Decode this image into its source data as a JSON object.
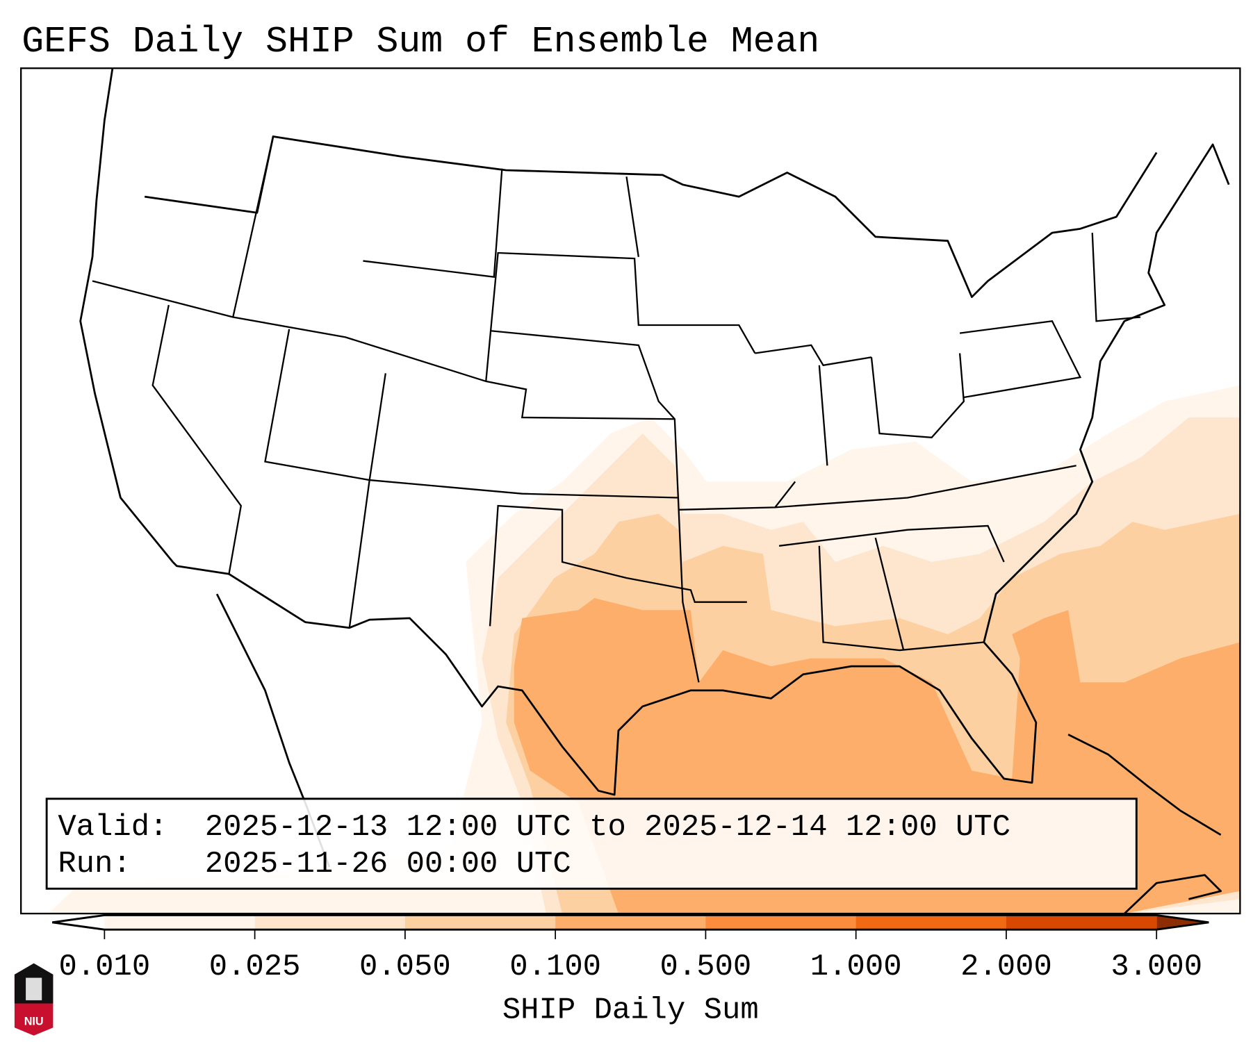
{
  "title": "GEFS Daily SHIP Sum of Ensemble Mean",
  "info_box": {
    "valid_label": "Valid:",
    "valid_value": "2025-12-13 12:00 UTC to 2025-12-14 12:00 UTC",
    "run_label": "Run:",
    "run_value": "2025-11-26 00:00 UTC"
  },
  "colorbar": {
    "label": "SHIP Daily Sum",
    "ticks": [
      "0.010",
      "0.025",
      "0.050",
      "0.100",
      "0.500",
      "1.000",
      "2.000",
      "3.000"
    ],
    "colors": [
      "#fff5eb",
      "#fee6ce",
      "#fdd0a2",
      "#fdae6b",
      "#fd8d3c",
      "#f16913",
      "#d94801"
    ],
    "under_color": "#ffffff",
    "over_color": "#8c2d04"
  },
  "logo": {
    "text": "NIU",
    "top_color": "#111111",
    "bottom_color": "#c8102e"
  }
}
